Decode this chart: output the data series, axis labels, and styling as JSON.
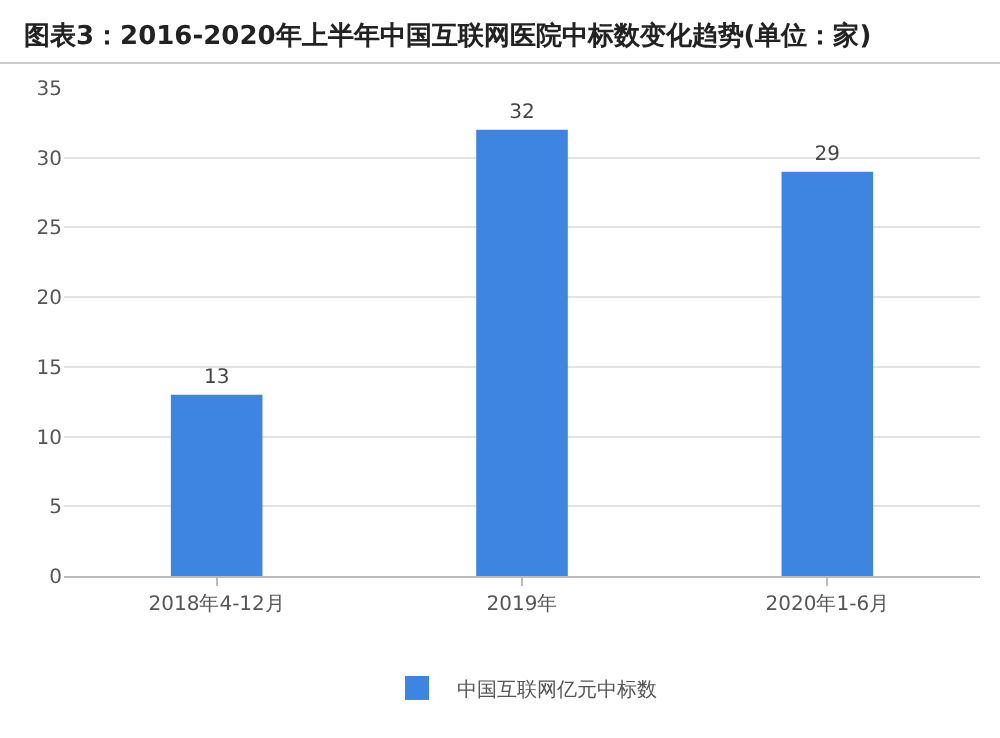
{
  "chart_data": {
    "type": "bar",
    "title": "图表3：2016-2020年上半年中国互联网医院中标数变化趋势(单位：家)",
    "categories": [
      "2018年4-12月",
      "2019年",
      "2020年1-6月"
    ],
    "series": [
      {
        "name": "中国互联网亿元中标数",
        "color": "#3d85e0",
        "values": [
          13,
          32,
          29
        ]
      }
    ],
    "ylim": [
      0,
      35
    ],
    "yticks": [
      0,
      5,
      10,
      15,
      20,
      25,
      30,
      35
    ],
    "grid": "y",
    "legend": "bottom",
    "data_labels": true
  }
}
